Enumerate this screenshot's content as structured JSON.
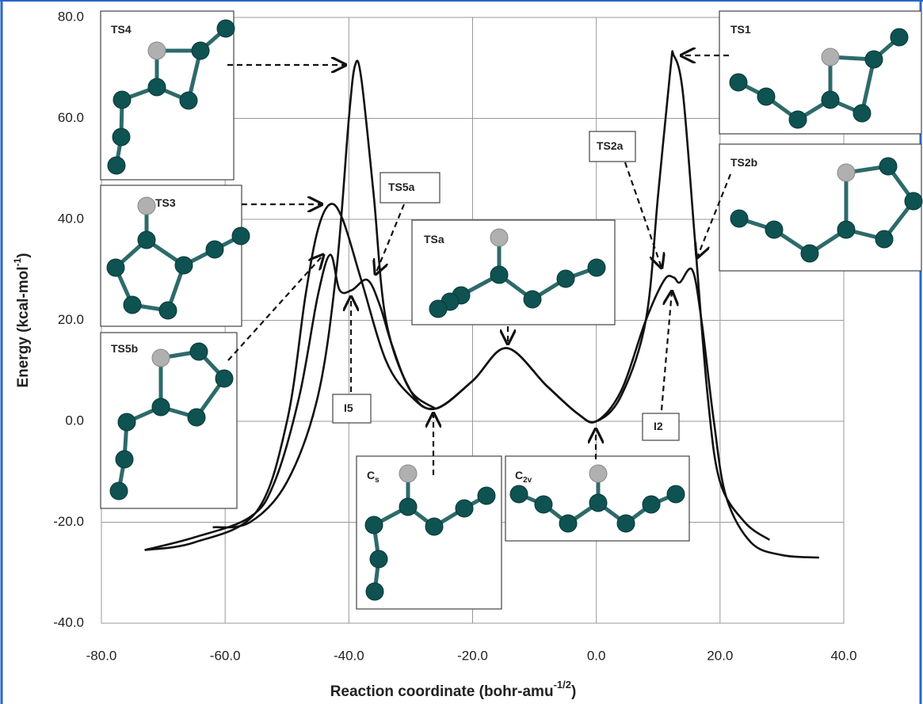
{
  "chart_data": {
    "type": "line",
    "x_label": {
      "text": "Reaction coordinate (bohr-amu",
      "superscript": "-1/2",
      "suffix": ")"
    },
    "y_label": {
      "text": "Energy (kcal-mol",
      "superscript": "-1",
      "suffix": ")"
    },
    "xlim": [
      -80,
      40
    ],
    "ylim": [
      -40,
      80
    ],
    "xticks": [
      {
        "value": -80,
        "label": "-80.0"
      },
      {
        "value": -60,
        "label": "-60.0"
      },
      {
        "value": -40,
        "label": "-40.0"
      },
      {
        "value": -20,
        "label": "-20.0"
      },
      {
        "value": 0,
        "label": "0.0"
      },
      {
        "value": 20,
        "label": "20.0"
      },
      {
        "value": 40,
        "label": "40.0"
      }
    ],
    "yticks": [
      {
        "value": -40,
        "label": "-40.0"
      },
      {
        "value": -20,
        "label": "-20.0"
      },
      {
        "value": 0,
        "label": "0.0"
      },
      {
        "value": 20,
        "label": "20.0"
      },
      {
        "value": 40,
        "label": "40.0"
      },
      {
        "value": 60,
        "label": "60.0"
      },
      {
        "value": 80,
        "label": "80.0"
      }
    ],
    "grid": true,
    "series": [
      {
        "color": "#111111",
        "x": [
          -62,
          -56,
          -50,
          -45,
          -42,
          -40,
          -39,
          -38,
          -36,
          -34,
          -30,
          -26,
          -20,
          -14.5,
          -8,
          -3,
          0,
          4,
          8,
          10,
          12,
          12.5,
          14,
          16,
          18,
          20,
          24,
          28
        ],
        "values": [
          -21,
          -20,
          -12,
          5,
          30,
          60,
          70.5,
          68,
          45,
          20,
          6,
          2.5,
          8,
          14.5,
          7,
          1.5,
          0,
          5,
          20,
          45,
          70,
          72.5,
          65,
          35,
          5,
          -12,
          -20,
          -23.5
        ]
      },
      {
        "color": "#111111",
        "x": [
          -73,
          -65,
          -55,
          -50,
          -47,
          -45,
          -43,
          -41,
          -38,
          -34,
          -30,
          -26,
          -20,
          -14.5,
          -8,
          -3,
          0,
          4,
          8,
          11,
          12.5,
          13.5,
          15.5,
          17,
          19,
          21,
          25,
          30,
          36
        ],
        "values": [
          -25.5,
          -24,
          -18,
          0,
          25,
          38,
          43,
          40,
          28,
          12,
          5,
          2.5,
          8,
          14.5,
          7,
          1.5,
          0,
          6,
          20,
          28,
          28.5,
          27.5,
          30,
          20,
          0,
          -15,
          -24,
          -26.5,
          -27
        ]
      },
      {
        "color": "#111111",
        "x": [
          -73,
          -65,
          -56,
          -52,
          -48,
          -45,
          -43,
          -41.5,
          -39.5,
          -37,
          -35,
          -33,
          -30,
          -26
        ],
        "values": [
          -25.5,
          -23,
          -19,
          -12,
          5,
          25,
          33,
          26,
          26,
          28,
          23,
          15,
          6,
          2.5
        ]
      }
    ],
    "annotations": [
      {
        "text": "TS4"
      },
      {
        "text": "TS3"
      },
      {
        "text": "TS5b"
      },
      {
        "text": "TS5a"
      },
      {
        "text": "TSa"
      },
      {
        "text": "C",
        "subscript": "s"
      },
      {
        "text": "C",
        "subscript": "2v"
      },
      {
        "text": "TS1"
      },
      {
        "text": "TS2a"
      },
      {
        "text": "TS2b"
      },
      {
        "text": "I5"
      },
      {
        "text": "I2"
      }
    ]
  }
}
